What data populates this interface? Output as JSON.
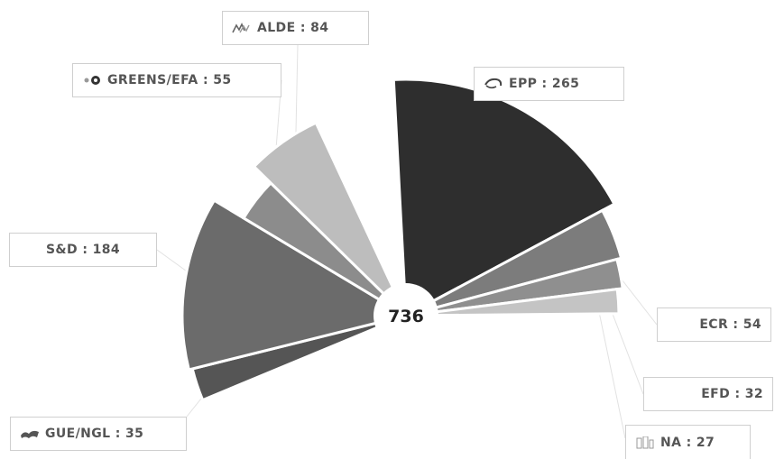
{
  "chart_data": {
    "type": "pie",
    "subtype": "semicircle-variable-radius",
    "center_total": "736",
    "slices": [
      {
        "name": "EPP",
        "value": 265,
        "label": "EPP : 265",
        "color": "#2e2e2e",
        "icon": "epp-logo-icon"
      },
      {
        "name": "ECR",
        "value": 54,
        "label": "ECR : 54",
        "color": "#7c7c7c",
        "icon": ""
      },
      {
        "name": "EFD",
        "value": 32,
        "label": "EFD : 32",
        "color": "#8f8f8f",
        "icon": ""
      },
      {
        "name": "NA",
        "value": 27,
        "label": "NA : 27",
        "color": "#c4c4c4",
        "icon": "na-logo-icon"
      },
      {
        "name": "GUE/NGL",
        "value": 35,
        "label": "GUE/NGL : 35",
        "color": "#555555",
        "icon": "gue-ngl-logo-icon"
      },
      {
        "name": "S&D",
        "value": 184,
        "label": "S&D : 184",
        "color": "#6b6b6b",
        "icon": ""
      },
      {
        "name": "GREENS/EFA",
        "value": 55,
        "label": "GREENS/EFA : 55",
        "color": "#8c8c8c",
        "icon": "greens-efa-logo-icon"
      },
      {
        "name": "ALDE",
        "value": 84,
        "label": "ALDE : 84",
        "color": "#bdbdbd",
        "icon": "alde-logo-icon"
      }
    ]
  }
}
